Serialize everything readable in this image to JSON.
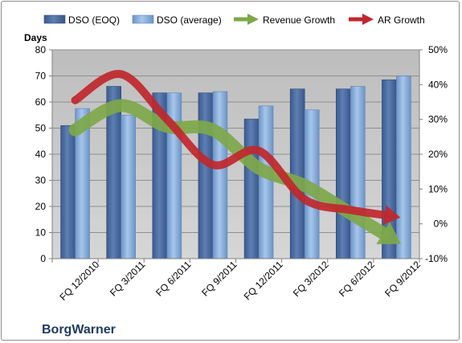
{
  "chart_data": {
    "type": "bar",
    "categories": [
      "FQ 12/2010",
      "FQ 3/2011",
      "FQ 6/2011",
      "FQ 9/2011",
      "FQ 12/2011",
      "FQ 3/2012",
      "FQ 6/2012",
      "FQ 9/2012"
    ],
    "series": [
      {
        "name": "DSO (EOQ)",
        "type": "bar",
        "axis": "left",
        "values": [
          51,
          66,
          63.5,
          63.5,
          53.5,
          65,
          65,
          68.5
        ]
      },
      {
        "name": "DSO (average)",
        "type": "bar",
        "axis": "left",
        "values": [
          57.5,
          55,
          63.5,
          64,
          58.5,
          57,
          66,
          70
        ]
      },
      {
        "name": "Revenue Growth",
        "type": "line",
        "axis": "right",
        "values": [
          27,
          34,
          28,
          27,
          16,
          11,
          3,
          -5
        ]
      },
      {
        "name": "AR Growth",
        "type": "line",
        "axis": "right",
        "values": [
          35.5,
          43,
          30,
          17,
          21,
          7,
          4,
          2
        ]
      }
    ],
    "ylabel": "Days",
    "ylim": [
      0,
      80
    ],
    "yticks": [
      "0",
      "10",
      "20",
      "30",
      "40",
      "50",
      "60",
      "70",
      "80"
    ],
    "y2lim": [
      -10,
      50
    ],
    "y2ticks": [
      "-10%",
      "0%",
      "10%",
      "20%",
      "30%",
      "40%",
      "50%"
    ],
    "grid": true,
    "legend_position": "top",
    "colors": {
      "bar_eoq": "#4f6d9e",
      "bar_avg": "#7ea6d6",
      "revenue_growth": "#7ea84a",
      "ar_growth": "#c0272d",
      "plot_bg": "#c8c8c8"
    }
  },
  "company_label": "BorgWarner"
}
